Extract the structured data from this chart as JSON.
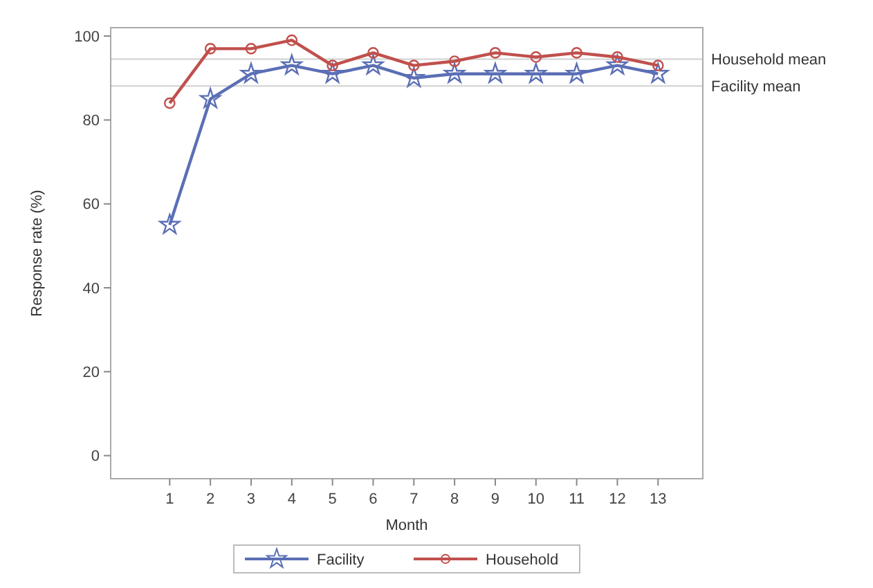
{
  "chart_data": {
    "type": "line",
    "xlabel": "Month",
    "ylabel": "Response rate (%)",
    "x": [
      1,
      2,
      3,
      4,
      5,
      6,
      7,
      8,
      9,
      10,
      11,
      12,
      13
    ],
    "xlim": [
      -0.45,
      14.1
    ],
    "xticks": [
      1,
      2,
      3,
      4,
      5,
      6,
      7,
      8,
      9,
      10,
      11,
      12,
      13
    ],
    "ylim": [
      -5.5,
      102
    ],
    "yticks": [
      0,
      20,
      40,
      60,
      80,
      100
    ],
    "series": [
      {
        "name": "Facility",
        "color": "#5b6fb5",
        "marker": "star",
        "values": [
          55,
          85,
          91,
          93,
          91,
          93,
          90,
          91,
          91,
          91,
          91,
          93,
          91
        ]
      },
      {
        "name": "Household",
        "color": "#c0504d",
        "marker": "circle",
        "values": [
          84,
          97,
          97,
          99,
          93,
          96,
          93,
          94,
          96,
          95,
          96,
          95,
          93
        ]
      }
    ],
    "ref_lines": [
      {
        "axis": "y",
        "value": 94.5,
        "label": "Household mean",
        "color": "#d0d0d0"
      },
      {
        "axis": "y",
        "value": 88.1,
        "label": "Facility mean",
        "color": "#d0d0d0"
      }
    ],
    "grid": false,
    "legend": "bottom",
    "line_style": "solid"
  }
}
